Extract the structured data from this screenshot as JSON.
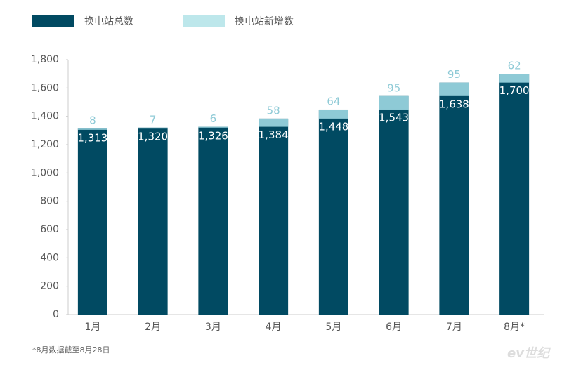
{
  "chart_data": {
    "type": "bar",
    "stacked": true,
    "categories": [
      "1月",
      "2月",
      "3月",
      "4月",
      "5月",
      "6月",
      "7月",
      "8月*"
    ],
    "series": [
      {
        "name": "换电站总数",
        "color": "#014a62",
        "values": [
          1313,
          1320,
          1326,
          1384,
          1448,
          1543,
          1638,
          1700
        ],
        "value_labels": [
          "1,313",
          "1,320",
          "1,326",
          "1,384",
          "1,448",
          "1,543",
          "1,638",
          "1,700"
        ]
      },
      {
        "name": "换电站新增数",
        "color": "#8ecad6",
        "values": [
          8,
          7,
          6,
          58,
          64,
          95,
          95,
          62
        ]
      }
    ],
    "ylim": [
      0,
      1800
    ],
    "yticks": [
      0,
      200,
      400,
      600,
      800,
      {
        "value": 1000,
        "label": "1,000"
      },
      {
        "value": 1200,
        "label": "1,200"
      },
      {
        "value": 1400,
        "label": "1,400"
      },
      {
        "value": 1600,
        "label": "1,600"
      },
      {
        "value": 1800,
        "label": "1,800"
      }
    ],
    "footnote": "*8月数据截至8月28日",
    "watermark": "ev世纪"
  }
}
